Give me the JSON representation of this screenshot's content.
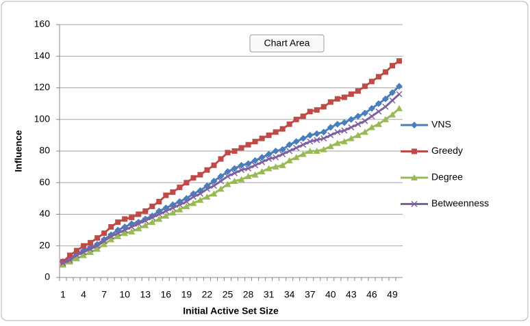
{
  "chart_data": {
    "type": "line",
    "x_label": "Initial Active Set Size",
    "y_label": "Influence",
    "annotation": "Chart Area",
    "categories": [
      "1",
      null,
      null,
      "4",
      null,
      null,
      "7",
      null,
      null,
      "10",
      null,
      null,
      "13",
      null,
      null,
      "16",
      null,
      null,
      "19",
      null,
      null,
      "22",
      null,
      null,
      "25",
      null,
      null,
      "28",
      null,
      null,
      "31",
      null,
      null,
      "34",
      null,
      null,
      "37",
      null,
      null,
      "40",
      null,
      null,
      "43",
      null,
      null,
      "46",
      null,
      null,
      "49",
      null
    ],
    "ylim": [
      0,
      160
    ],
    "yticks": [
      0,
      20,
      40,
      60,
      80,
      100,
      120,
      140,
      160
    ],
    "grid": true,
    "legend": "right",
    "series": [
      {
        "name": "VNS",
        "color": "#4a7ebb",
        "marker": "diamond",
        "values": [
          10,
          12,
          15,
          17,
          19,
          21,
          24,
          27,
          30,
          32,
          34,
          35,
          37,
          39,
          42,
          44,
          46,
          48,
          50,
          53,
          55,
          58,
          61,
          64,
          67,
          69,
          71,
          72,
          74,
          76,
          78,
          80,
          81,
          84,
          86,
          88,
          90,
          91,
          92,
          95,
          97,
          98,
          100,
          102,
          104,
          107,
          110,
          113,
          117,
          121
        ]
      },
      {
        "name": "Greedy",
        "color": "#be4b48",
        "marker": "square",
        "values": [
          10,
          14,
          17,
          20,
          22,
          25,
          28,
          32,
          35,
          37,
          38,
          40,
          42,
          45,
          48,
          52,
          54,
          57,
          60,
          63,
          65,
          68,
          71,
          75,
          79,
          80,
          82,
          84,
          86,
          88,
          90,
          92,
          94,
          97,
          100,
          102,
          105,
          106,
          108,
          111,
          113,
          114,
          116,
          118,
          121,
          124,
          127,
          130,
          134,
          137
        ]
      },
      {
        "name": "Degree",
        "color": "#98b954",
        "marker": "triangle",
        "values": [
          8,
          10,
          12,
          14,
          16,
          18,
          21,
          24,
          26,
          28,
          29,
          31,
          33,
          35,
          37,
          39,
          41,
          43,
          45,
          47,
          49,
          51,
          53,
          56,
          59,
          61,
          62,
          64,
          65,
          67,
          69,
          70,
          71,
          74,
          76,
          78,
          80,
          80,
          81,
          83,
          85,
          86,
          88,
          90,
          92,
          95,
          97,
          100,
          103,
          107
        ]
      },
      {
        "name": "Betweenness",
        "color": "#7d60a0",
        "marker": "x",
        "values": [
          9,
          11,
          14,
          16,
          18,
          20,
          23,
          26,
          28,
          30,
          32,
          34,
          36,
          38,
          40,
          42,
          44,
          46,
          48,
          51,
          53,
          56,
          58,
          61,
          64,
          66,
          68,
          69,
          71,
          73,
          75,
          76,
          78,
          80,
          82,
          84,
          86,
          87,
          88,
          90,
          92,
          93,
          95,
          97,
          99,
          102,
          105,
          108,
          112,
          116
        ]
      }
    ]
  }
}
